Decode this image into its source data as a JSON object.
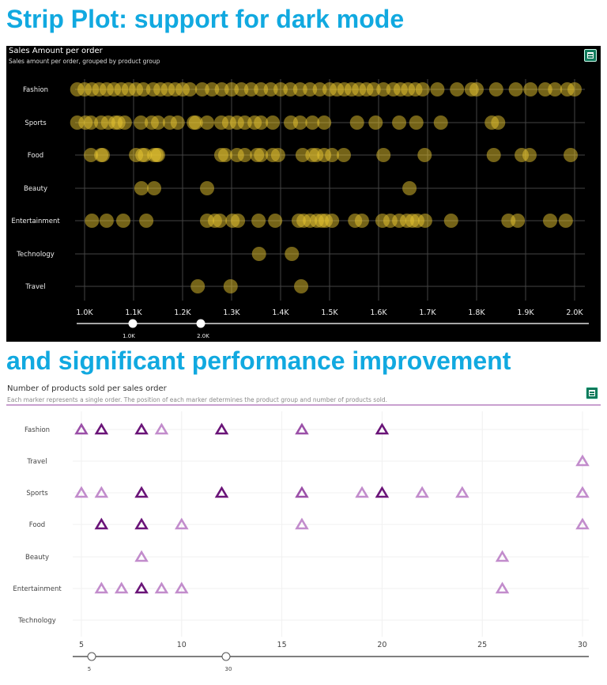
{
  "headlines": [
    "Strip Plot: support for dark mode",
    "and significant performance improvement"
  ],
  "chart_data": [
    {
      "type": "scatter",
      "title": "Sales Amount per order",
      "subtitle": "Sales amount per order, grouped by product group",
      "theme": "dark",
      "marker": "circle",
      "color": "#e8c630",
      "categories": [
        "Fashion",
        "Sports",
        "Food",
        "Beauty",
        "Entertainment",
        "Technology",
        "Travel"
      ],
      "xlim": [
        1000,
        2000
      ],
      "xticks": [
        "1.0K",
        "1.1K",
        "1.2K",
        "1.3K",
        "1.4K",
        "1.5K",
        "1.6K",
        "1.7K",
        "1.8K",
        "1.9K",
        "2.0K"
      ],
      "grid": true,
      "slider": {
        "min_label": "1.0K",
        "max_label": "2.0K",
        "range": [
          1000,
          2000
        ]
      },
      "points": {
        "Fashion": [
          985,
          1000,
          1015,
          1030,
          1045,
          1060,
          1075,
          1090,
          1105,
          1120,
          1140,
          1155,
          1170,
          1185,
          1200,
          1215,
          1240,
          1260,
          1280,
          1300,
          1320,
          1340,
          1360,
          1380,
          1400,
          1420,
          1440,
          1460,
          1480,
          1500,
          1515,
          1530,
          1545,
          1560,
          1575,
          1590,
          1610,
          1630,
          1645,
          1660,
          1675,
          1690,
          1720,
          1760,
          1790,
          1800,
          1840,
          1880,
          1910,
          1940,
          1960,
          1985,
          2000
        ],
        "Sports": [
          985,
          1002,
          1013,
          1034,
          1048,
          1063,
          1069,
          1082,
          1115,
          1137,
          1150,
          1174,
          1190,
          1223,
          1227,
          1250,
          1279,
          1295,
          1311,
          1327,
          1347,
          1360,
          1384,
          1421,
          1440,
          1465,
          1489,
          1556,
          1594,
          1642,
          1677,
          1727,
          1831,
          1844
        ],
        "Food": [
          1013,
          1034,
          1037,
          1105,
          1118,
          1123,
          1142,
          1147,
          1150,
          1279,
          1287,
          1311,
          1327,
          1352,
          1360,
          1384,
          1395,
          1445,
          1465,
          1473,
          1489,
          1505,
          1529,
          1610,
          1694,
          1835,
          1892,
          1908,
          1992
        ],
        "Beauty": [
          1116,
          1142,
          1250,
          1663
        ],
        "Entertainment": [
          1015,
          1045,
          1079,
          1126,
          1250,
          1266,
          1276,
          1302,
          1313,
          1355,
          1389,
          1437,
          1447,
          1460,
          1474,
          1484,
          1492,
          1505,
          1552,
          1566,
          1608,
          1624,
          1642,
          1658,
          1669,
          1679,
          1695,
          1748,
          1865,
          1884,
          1950,
          1982
        ],
        "Technology": [
          1356,
          1423
        ],
        "Travel": [
          1231,
          1298,
          1442
        ]
      }
    },
    {
      "type": "scatter",
      "title": "Number of products sold per sales order",
      "subtitle": "Each marker represents a single order. The position of each marker determines the product group and number of products sold.",
      "theme": "light",
      "marker": "triangle-open",
      "colors": {
        "high": "#6a1478",
        "mid": "#9b50a8",
        "low": "#c28ccc"
      },
      "categories": [
        "Fashion",
        "Travel",
        "Sports",
        "Food",
        "Beauty",
        "Entertainment",
        "Technology"
      ],
      "xlim": [
        5,
        30
      ],
      "xticks": [
        "5",
        "10",
        "15",
        "20",
        "25",
        "30"
      ],
      "grid": true,
      "slider": {
        "min_label": "5",
        "max_label": "30",
        "range": [
          5,
          30
        ]
      },
      "points": {
        "Fashion": [
          [
            5,
            "mid"
          ],
          [
            6,
            "high"
          ],
          [
            8,
            "high"
          ],
          [
            9,
            "low"
          ],
          [
            12,
            "high"
          ],
          [
            16,
            "mid"
          ],
          [
            20,
            "high"
          ]
        ],
        "Travel": [
          [
            30,
            "low"
          ]
        ],
        "Sports": [
          [
            5,
            "low"
          ],
          [
            6,
            "low"
          ],
          [
            8,
            "high"
          ],
          [
            12,
            "high"
          ],
          [
            16,
            "mid"
          ],
          [
            19,
            "low"
          ],
          [
            20,
            "high"
          ],
          [
            22,
            "low"
          ],
          [
            24,
            "low"
          ],
          [
            30,
            "low"
          ]
        ],
        "Food": [
          [
            6,
            "high"
          ],
          [
            8,
            "high"
          ],
          [
            10,
            "low"
          ],
          [
            16,
            "low"
          ],
          [
            30,
            "low"
          ]
        ],
        "Beauty": [
          [
            8,
            "low"
          ],
          [
            26,
            "low"
          ]
        ],
        "Entertainment": [
          [
            6,
            "low"
          ],
          [
            7,
            "low"
          ],
          [
            8,
            "high"
          ],
          [
            9,
            "low"
          ],
          [
            10,
            "low"
          ],
          [
            26,
            "low"
          ]
        ],
        "Technology": []
      }
    }
  ],
  "icons": {
    "chart_menu": "table-view-icon"
  }
}
